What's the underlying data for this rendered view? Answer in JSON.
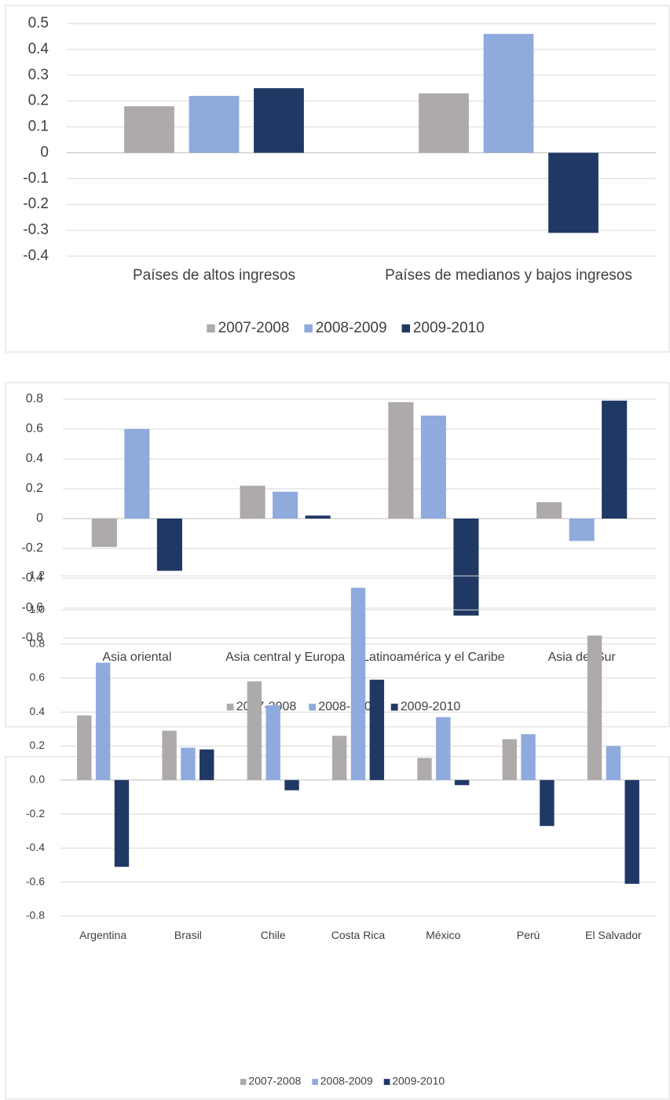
{
  "chart_data": [
    {
      "type": "bar",
      "categories": [
        "Países de altos ingresos",
        "Países de medianos y bajos ingresos"
      ],
      "series": [
        {
          "name": "2007-2008",
          "color": "#aeaaaa",
          "values": [
            0.18,
            0.23
          ]
        },
        {
          "name": "2008-2009",
          "color": "#8faadc",
          "values": [
            0.22,
            0.46
          ]
        },
        {
          "name": "2009-2010",
          "color": "#203864",
          "values": [
            0.25,
            -0.31
          ]
        }
      ],
      "ylim": [
        -0.4,
        0.5
      ],
      "yticks": [
        0.5,
        0.4,
        0.3,
        0.2,
        0.1,
        0,
        -0.1,
        -0.2,
        -0.3,
        -0.4
      ],
      "grid": true,
      "legend": "bottom"
    },
    {
      "type": "bar",
      "categories": [
        "Asia oriental",
        "Asia central y Europa",
        "Latinoamérica y el Caribe",
        "Asia del Sur"
      ],
      "series": [
        {
          "name": "2007-2008",
          "color": "#aeaaaa",
          "values": [
            -0.19,
            0.22,
            0.78,
            0.11
          ]
        },
        {
          "name": "2008-2009",
          "color": "#8faadc",
          "values": [
            0.6,
            0.18,
            0.69,
            -0.15
          ]
        },
        {
          "name": "2009-2010",
          "color": "#203864",
          "values": [
            -0.35,
            0.02,
            -0.65,
            0.79
          ]
        }
      ],
      "ylim": [
        -0.8,
        0.8
      ],
      "yticks": [
        0.8,
        0.6,
        0.4,
        0.2,
        0,
        -0.2,
        -0.4,
        -0.6,
        -0.8
      ],
      "grid": true,
      "legend": "bottom"
    },
    {
      "type": "bar",
      "categories": [
        "Argentina",
        "Brasil",
        "Chile",
        "Costa Rica",
        "México",
        "Perú",
        "El Salvador"
      ],
      "series": [
        {
          "name": "2007-2008",
          "color": "#aeaaaa",
          "values": [
            0.38,
            0.29,
            0.58,
            0.26,
            0.13,
            0.24,
            0.85
          ]
        },
        {
          "name": "2008-2009",
          "color": "#8faadc",
          "values": [
            0.69,
            0.19,
            0.44,
            1.13,
            0.37,
            0.27,
            0.2
          ]
        },
        {
          "name": "2009-2010",
          "color": "#203864",
          "values": [
            -0.51,
            0.18,
            -0.06,
            0.59,
            -0.03,
            -0.27,
            -0.61
          ]
        }
      ],
      "ylim": [
        -0.8,
        1.2
      ],
      "yticks": [
        1.2,
        {
          "value": 1,
          "label": "1.0"
        },
        0.8,
        0.6,
        0.4,
        0.2,
        {
          "value": 0,
          "label": "0.0"
        },
        -0.2,
        -0.4,
        -0.6,
        -0.8
      ],
      "grid": true,
      "legend": "bottom"
    }
  ]
}
